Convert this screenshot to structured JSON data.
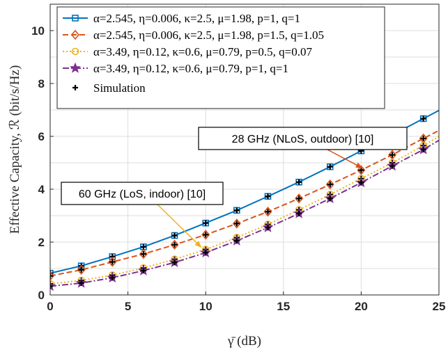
{
  "chart_data": {
    "type": "line",
    "xlabel": "γ̄ (dB)",
    "ylabel": "Effective Capacity, ℛ (bit/s/Hz)",
    "xlim": [
      0,
      25
    ],
    "ylim": [
      0,
      11
    ],
    "xticks": [
      0,
      5,
      10,
      15,
      20,
      25
    ],
    "yticks": [
      0,
      2,
      4,
      6,
      8,
      10
    ],
    "grid": true,
    "legend_position": "top-left",
    "x": [
      0,
      2,
      4,
      6,
      8,
      10,
      12,
      14,
      16,
      18,
      20,
      22,
      24
    ],
    "series": [
      {
        "name": "α=2.545, η=0.006, κ=2.5, μ=1.98, p=1, q=1",
        "color": "#0072BD",
        "line_style": "solid",
        "marker": "square",
        "values": [
          0.82,
          1.1,
          1.45,
          1.82,
          2.25,
          2.72,
          3.2,
          3.73,
          4.27,
          4.85,
          5.45,
          6.05,
          6.67
        ],
        "end_value": 6.98
      },
      {
        "name": "α=2.545, η=0.006, κ=2.5, μ=1.98, p=1.5, q=1.05",
        "color": "#D95319",
        "line_style": "dashed",
        "marker": "diamond",
        "values": [
          0.72,
          0.95,
          1.25,
          1.55,
          1.9,
          2.28,
          2.7,
          3.15,
          3.65,
          4.18,
          4.72,
          5.3,
          5.92
        ],
        "end_value": 6.22
      },
      {
        "name": "α=3.49, η=0.12, κ=0.6, μ=0.79, p=0.5, q=0.07",
        "color": "#EDB120",
        "line_style": "dotted",
        "marker": "circle",
        "values": [
          0.42,
          0.55,
          0.75,
          1.02,
          1.35,
          1.72,
          2.17,
          2.67,
          3.22,
          3.8,
          4.4,
          5.0,
          5.65
        ],
        "end_value": 6.0
      },
      {
        "name": "α=3.49, η=0.12, κ=0.6, μ=0.79, p=1, q=1",
        "color": "#7E2F8E",
        "line_style": "dashdot",
        "marker": "star",
        "values": [
          0.33,
          0.45,
          0.65,
          0.92,
          1.23,
          1.6,
          2.05,
          2.55,
          3.08,
          3.65,
          4.25,
          4.88,
          5.5
        ],
        "end_value": 5.85
      }
    ],
    "simulation": {
      "name": "Simulation",
      "marker": "plus",
      "color": "#000000"
    },
    "annotations": [
      {
        "text": "28 GHz (NLoS, outdoor) [10]",
        "arrow_to_x": 20.2,
        "arrow_to_y": 4.7,
        "arrow_color": "#D95319"
      },
      {
        "text": "60 GHz (LoS, indoor) [10]",
        "arrow_to_x": 9.8,
        "arrow_to_y": 1.7,
        "arrow_color": "#EDB120"
      }
    ]
  }
}
